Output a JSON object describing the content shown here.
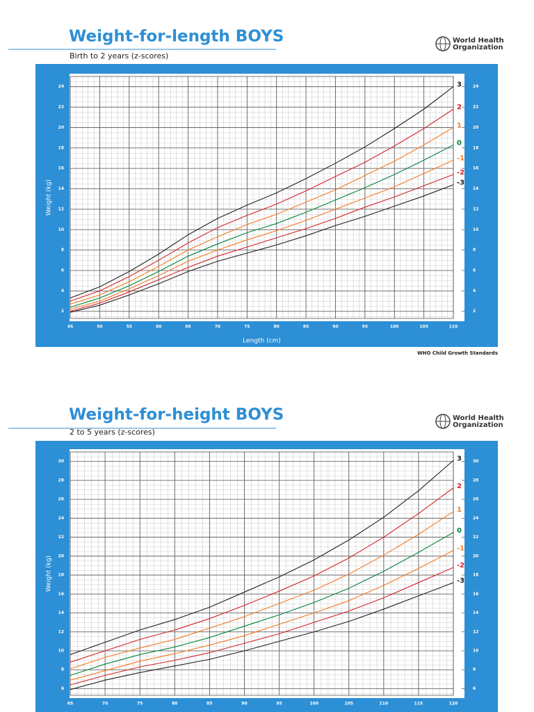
{
  "chart_data": [
    {
      "type": "line",
      "title": "Weight-for-length BOYS",
      "subtitle": "Birth to 2 years (z-scores)",
      "org": [
        "World Health",
        "Organization"
      ],
      "footer": "WHO Child Growth Standards",
      "x_label": "Length (cm)",
      "y_label": "Weight (kg)",
      "x": [
        45,
        50,
        55,
        60,
        65,
        70,
        75,
        80,
        85,
        90,
        95,
        100,
        105,
        110
      ],
      "xlim": [
        45,
        110
      ],
      "xticks": [
        45,
        50,
        55,
        60,
        65,
        70,
        75,
        80,
        85,
        90,
        95,
        100,
        105,
        110
      ],
      "ylim": [
        1.3,
        25
      ],
      "yticks": [
        2,
        4,
        6,
        8,
        10,
        12,
        14,
        16,
        18,
        20,
        22,
        24
      ],
      "grid": true,
      "series": [
        {
          "name": "3",
          "color": "#231f20",
          "values": [
            3.3,
            4.4,
            5.9,
            7.6,
            9.5,
            11.1,
            12.4,
            13.6,
            15.0,
            16.5,
            18.1,
            19.9,
            21.8,
            24.0
          ]
        },
        {
          "name": "2",
          "color": "#d2232a",
          "values": [
            3.0,
            4.0,
            5.4,
            7.0,
            8.7,
            10.2,
            11.4,
            12.5,
            13.8,
            15.2,
            16.6,
            18.2,
            19.9,
            21.8
          ]
        },
        {
          "name": "1",
          "color": "#f47920",
          "values": [
            2.7,
            3.6,
            4.9,
            6.4,
            8.0,
            9.3,
            10.5,
            11.5,
            12.7,
            13.9,
            15.3,
            16.7,
            18.3,
            20.0
          ]
        },
        {
          "name": "0",
          "color": "#00843d",
          "values": [
            2.4,
            3.3,
            4.5,
            5.9,
            7.4,
            8.6,
            9.7,
            10.6,
            11.7,
            12.9,
            14.1,
            15.4,
            16.8,
            18.3
          ]
        },
        {
          "name": "-1",
          "color": "#f47920",
          "values": [
            2.2,
            3.0,
            4.2,
            5.5,
            6.9,
            8.0,
            9.0,
            9.9,
            10.9,
            12.0,
            13.1,
            14.2,
            15.5,
            16.8
          ]
        },
        {
          "name": "-2",
          "color": "#d2232a",
          "values": [
            2.0,
            2.8,
            3.9,
            5.1,
            6.3,
            7.4,
            8.3,
            9.2,
            10.1,
            11.1,
            12.2,
            13.2,
            14.3,
            15.4
          ]
        },
        {
          "name": "-3",
          "color": "#231f20",
          "values": [
            1.9,
            2.6,
            3.6,
            4.7,
            5.9,
            6.9,
            7.7,
            8.5,
            9.4,
            10.4,
            11.3,
            12.3,
            13.3,
            14.4
          ]
        }
      ]
    },
    {
      "type": "line",
      "title": "Weight-for-height BOYS",
      "subtitle": "2 to 5 years (z-scores)",
      "org": [
        "World Health",
        "Organization"
      ],
      "y_label": "Weight (kg)",
      "x": [
        65,
        70,
        75,
        80,
        85,
        90,
        95,
        100,
        105,
        110,
        115,
        120
      ],
      "xlim": [
        65,
        120
      ],
      "xticks": [
        65,
        70,
        75,
        80,
        85,
        90,
        95,
        100,
        105,
        110,
        115,
        120
      ],
      "ylim": [
        5.3,
        31
      ],
      "yticks": [
        6,
        8,
        10,
        12,
        14,
        16,
        18,
        20,
        22,
        24,
        26,
        28,
        30
      ],
      "grid": true,
      "series": [
        {
          "name": "3",
          "color": "#231f20",
          "values": [
            9.6,
            10.9,
            12.2,
            13.3,
            14.6,
            16.2,
            17.8,
            19.6,
            21.7,
            24.1,
            26.9,
            30.1
          ]
        },
        {
          "name": "2",
          "color": "#d2232a",
          "values": [
            8.8,
            10.0,
            11.2,
            12.2,
            13.4,
            14.8,
            16.3,
            17.9,
            19.8,
            22.0,
            24.5,
            27.2
          ]
        },
        {
          "name": "1",
          "color": "#f47920",
          "values": [
            8.1,
            9.3,
            10.3,
            11.2,
            12.4,
            13.6,
            15.0,
            16.4,
            18.1,
            20.1,
            22.3,
            24.7
          ]
        },
        {
          "name": "0",
          "color": "#00843d",
          "values": [
            7.4,
            8.6,
            9.6,
            10.4,
            11.4,
            12.6,
            13.8,
            15.1,
            16.6,
            18.4,
            20.4,
            22.5
          ]
        },
        {
          "name": "-1",
          "color": "#f47920",
          "values": [
            6.9,
            7.9,
            8.9,
            9.7,
            10.6,
            11.6,
            12.8,
            14.0,
            15.3,
            16.9,
            18.7,
            20.6
          ]
        },
        {
          "name": "-2",
          "color": "#d2232a",
          "values": [
            6.4,
            7.4,
            8.3,
            9.0,
            9.8,
            10.8,
            11.8,
            13.0,
            14.2,
            15.6,
            17.2,
            18.8
          ]
        },
        {
          "name": "-3",
          "color": "#231f20",
          "values": [
            5.9,
            6.9,
            7.7,
            8.4,
            9.1,
            10.0,
            11.0,
            12.0,
            13.1,
            14.4,
            15.8,
            17.2
          ]
        }
      ]
    }
  ]
}
